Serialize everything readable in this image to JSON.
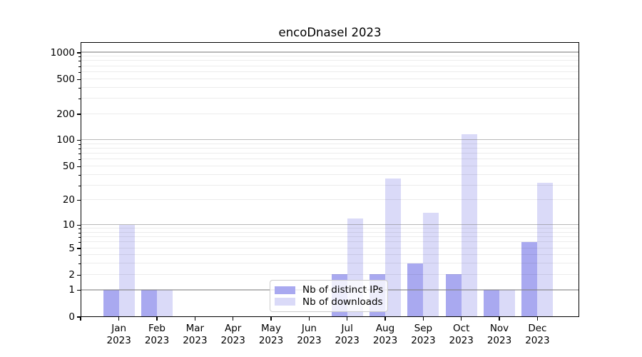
{
  "title": "encoDnaseI 2023",
  "chart_data": {
    "type": "bar",
    "title": "encoDnaseI 2023",
    "categories": [
      "Jan 2023",
      "Feb 2023",
      "Mar 2023",
      "Apr 2023",
      "May 2023",
      "Jun 2023",
      "Jul 2023",
      "Aug 2023",
      "Sep 2023",
      "Oct 2023",
      "Nov 2023",
      "Dec 2023"
    ],
    "series": [
      {
        "name": "Nb of distinct IPs",
        "color": "#a9a9f0",
        "values": [
          1,
          1,
          0,
          0,
          0,
          0,
          2,
          2,
          3,
          2,
          1,
          6
        ]
      },
      {
        "name": "Nb of downloads",
        "color": "#dadaf8",
        "values": [
          10,
          1,
          0,
          0,
          0,
          0,
          12,
          36,
          14,
          115,
          1,
          32
        ]
      }
    ],
    "xlabel": "",
    "ylabel": "",
    "y_scale": "log1p",
    "y_ticks": [
      0,
      1,
      2,
      5,
      10,
      20,
      50,
      100,
      200,
      500,
      1000
    ],
    "y_major_gridlines": [
      1,
      10,
      100,
      1000
    ],
    "ylim": [
      0,
      1320
    ],
    "grid": "on",
    "legend_position": "lower center inside"
  },
  "colors": {
    "bar_distinct_ips": "#a9a9f0",
    "bar_downloads": "#dadaf8",
    "grid_major": "#c3c3c3",
    "grid_minor": "#ececec",
    "axis": "#000000",
    "legend_border": "#cbcbcb",
    "background": "#ffffff",
    "text": "#000000"
  }
}
